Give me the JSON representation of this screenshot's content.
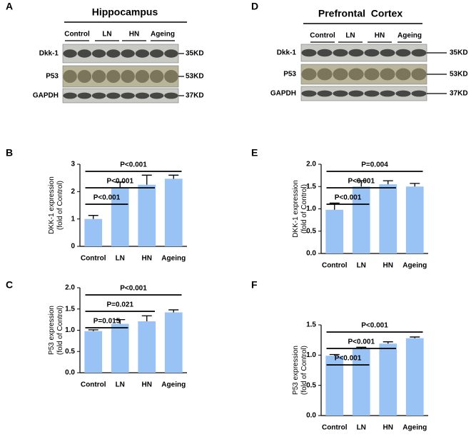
{
  "blots": [
    {
      "panel": "A",
      "title": "Hippocampus",
      "groups": [
        "Control",
        "LN",
        "HN",
        "Ageing"
      ],
      "rows": [
        {
          "name": "Dkk-1",
          "size": "35KD"
        },
        {
          "name": "P53",
          "size": "53KD"
        },
        {
          "name": "GAPDH",
          "size": "37KD"
        }
      ]
    },
    {
      "panel": "D",
      "title": "Prefrontal  Cortex",
      "groups": [
        "Control",
        "LN",
        "HN",
        "Ageing"
      ],
      "rows": [
        {
          "name": "Dkk-1",
          "size": "35KD"
        },
        {
          "name": "P53",
          "size": "53KD"
        },
        {
          "name": "GAPDH",
          "size": "37KD"
        }
      ]
    }
  ],
  "chart_data": [
    {
      "type": "bar",
      "panel": "B",
      "ylabel": [
        "DKK-1 expression",
        "(fold of Control)"
      ],
      "color": "#99c2f5",
      "categories": [
        "Control",
        "LN",
        "HN",
        "Ageing"
      ],
      "values": [
        1.0,
        2.15,
        2.25,
        2.47
      ],
      "errors": [
        0.13,
        0.2,
        0.35,
        0.13
      ],
      "ylim": [
        0,
        3
      ],
      "yticks": [
        0,
        1,
        2,
        3
      ],
      "brackets": [
        {
          "label": "P<0.001",
          "from": "Control",
          "to": "LN"
        },
        {
          "label": "P<0.001",
          "from": "Control",
          "to": "HN"
        },
        {
          "label": "P<0.001",
          "from": "Control",
          "to": "Ageing"
        }
      ]
    },
    {
      "type": "bar",
      "panel": "C",
      "ylabel": [
        "P53 expression",
        "(fold of Control)"
      ],
      "color": "#99c2f5",
      "categories": [
        "Control",
        "LN",
        "HN",
        "Ageing"
      ],
      "values": [
        0.98,
        1.15,
        1.21,
        1.42
      ],
      "errors": [
        0.03,
        0.1,
        0.13,
        0.06
      ],
      "ylim": [
        0,
        2
      ],
      "yticks": [
        {
          "value": 0,
          "label": "0.0"
        },
        0.5,
        {
          "value": 1,
          "label": "1.0"
        },
        1.5,
        {
          "value": 2,
          "label": "2.0"
        }
      ],
      "brackets": [
        {
          "label": "P=0.015",
          "from": "Control",
          "to": "LN"
        },
        {
          "label": "P=0.021",
          "from": "Control",
          "to": "HN"
        },
        {
          "label": "P<0.001",
          "from": "Control",
          "to": "Ageing"
        }
      ]
    },
    {
      "type": "bar",
      "panel": "E",
      "ylabel": [
        "DKK-1 expression",
        "(fold of Control)"
      ],
      "color": "#99c2f5",
      "categories": [
        "Control",
        "LN",
        "HN",
        "Ageing"
      ],
      "values": [
        0.98,
        1.5,
        1.55,
        1.5
      ],
      "errors": [
        0.15,
        0.13,
        0.08,
        0.07
      ],
      "ylim": [
        0,
        2
      ],
      "yticks": [
        {
          "value": 0,
          "label": "0.0"
        },
        0.5,
        {
          "value": 1,
          "label": "1.0"
        },
        1.5,
        {
          "value": 2,
          "label": "2.0"
        }
      ],
      "brackets": [
        {
          "label": "P<0.001",
          "from": "Control",
          "to": "LN"
        },
        {
          "label": "P<0.001",
          "from": "Control",
          "to": "HN"
        },
        {
          "label": "P=0.004",
          "from": "Control",
          "to": "Ageing"
        }
      ]
    },
    {
      "type": "bar",
      "panel": "F",
      "ylabel": [
        "P53 expression",
        "(fold of Control)"
      ],
      "color": "#99c2f5",
      "categories": [
        "Control",
        "LN",
        "HN",
        "Ageing"
      ],
      "values": [
        0.99,
        1.1,
        1.19,
        1.28
      ],
      "errors": [
        0.02,
        0.03,
        0.03,
        0.02
      ],
      "ylim": [
        0,
        1.5
      ],
      "yticks": [
        {
          "value": 0,
          "label": "0.0"
        },
        0.5,
        {
          "value": 1,
          "label": "1.0"
        },
        1.5
      ],
      "brackets": [
        {
          "label": "P<0.001",
          "from": "Control",
          "to": "LN"
        },
        {
          "label": "P<0.001",
          "from": "Control",
          "to": "HN"
        },
        {
          "label": "P<0.001",
          "from": "Control",
          "to": "Ageing"
        }
      ]
    }
  ]
}
